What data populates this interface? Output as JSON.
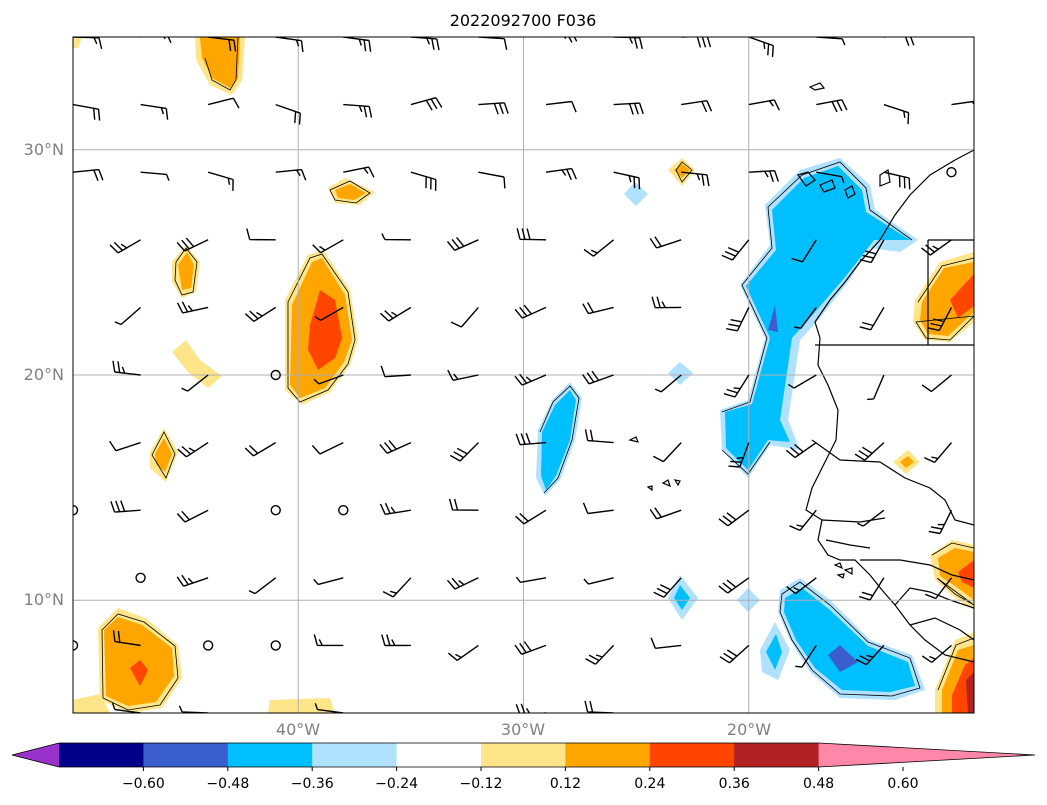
{
  "title": "2022092700 F036",
  "map_extent": {
    "lon_min": -50,
    "lon_max": -10,
    "lat_min": 5,
    "lat_max": 35
  },
  "lat_ticks": [
    {
      "value": 30,
      "label": "30°N"
    },
    {
      "value": 20,
      "label": "20°N"
    },
    {
      "value": 10,
      "label": "10°N"
    }
  ],
  "lon_ticks": [
    {
      "value": -40,
      "label": "40°W"
    },
    {
      "value": -30,
      "label": "30°W"
    },
    {
      "value": -20,
      "label": "20°W"
    }
  ],
  "colorbar": {
    "tick_labels": [
      "−0.60",
      "−0.48",
      "−0.36",
      "−0.24",
      "−0.12",
      "0.12",
      "0.24",
      "0.36",
      "0.48",
      "0.60"
    ],
    "colors": [
      "#9932cc",
      "#00008b",
      "#3a5fcd",
      "#00bfff",
      "#b0e2ff",
      "#ffffff",
      "#ffe58a",
      "#ffa500",
      "#ff4500",
      "#b22222",
      "#ff88aa"
    ]
  },
  "barb_grid": {
    "lon_start": -50,
    "lon_step": 3,
    "lat_start": 35,
    "lat_step": -3,
    "calm_symbol": "o"
  }
}
